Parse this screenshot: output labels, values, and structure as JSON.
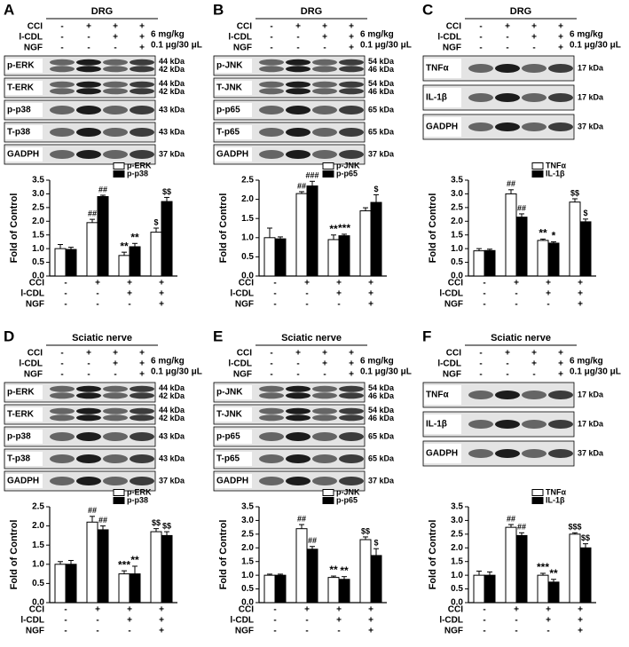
{
  "blots": [
    {
      "letter": "A",
      "tissue": "DRG",
      "conditions": [
        {
          "name": "CCI",
          "signs": [
            "-",
            "+",
            "+",
            "+"
          ]
        },
        {
          "name": "l-CDL",
          "signs": [
            "-",
            "-",
            "+",
            "+"
          ],
          "dose": "6 mg/kg"
        },
        {
          "name": "NGF",
          "signs": [
            "-",
            "-",
            "-",
            "+"
          ],
          "dose": "0.1 μg/30 μL"
        }
      ],
      "bands": [
        {
          "name": "p-ERK",
          "kda": [
            "44 kDa",
            "42 kDa"
          ]
        },
        {
          "name": "T-ERK",
          "kda": [
            "44 kDa",
            "42 kDa"
          ]
        },
        {
          "name": "p-p38",
          "kda": [
            "43 kDa"
          ]
        },
        {
          "name": "T-p38",
          "kda": [
            "43 kDa"
          ]
        },
        {
          "name": "GADPH",
          "kda": [
            "37 kDa"
          ]
        }
      ]
    },
    {
      "letter": "B",
      "tissue": "DRG",
      "conditions": [
        {
          "name": "CCI",
          "signs": [
            "-",
            "+",
            "+",
            "+"
          ]
        },
        {
          "name": "l-CDL",
          "signs": [
            "-",
            "-",
            "+",
            "+"
          ],
          "dose": "6 mg/kg"
        },
        {
          "name": "NGF",
          "signs": [
            "-",
            "-",
            "-",
            "+"
          ],
          "dose": "0.1 μg/30 μL"
        }
      ],
      "bands": [
        {
          "name": "p-JNK",
          "kda": [
            "54 kDa",
            "46 kDa"
          ]
        },
        {
          "name": "T-JNK",
          "kda": [
            "54 kDa",
            "46 kDa"
          ]
        },
        {
          "name": "p-p65",
          "kda": [
            "65 kDa"
          ]
        },
        {
          "name": "T-p65",
          "kda": [
            "65 kDa"
          ]
        },
        {
          "name": "GADPH",
          "kda": [
            "37 kDa"
          ]
        }
      ]
    },
    {
      "letter": "C",
      "tissue": "DRG",
      "conditions": [
        {
          "name": "CCI",
          "signs": [
            "-",
            "+",
            "+",
            "+"
          ]
        },
        {
          "name": "l-CDL",
          "signs": [
            "-",
            "-",
            "+",
            "+"
          ],
          "dose": "6 mg/kg"
        },
        {
          "name": "NGF",
          "signs": [
            "-",
            "-",
            "-",
            "+"
          ],
          "dose": "0.1 μg/30 μL"
        }
      ],
      "bands": [
        {
          "name": "TNFα",
          "kda": [
            "17 kDa"
          ]
        },
        {
          "name": "IL-1β",
          "kda": [
            "17 kDa"
          ]
        },
        {
          "name": "GADPH",
          "kda": [
            "37 kDa"
          ]
        }
      ]
    },
    {
      "letter": "D",
      "tissue": "Sciatic nerve",
      "conditions": [
        {
          "name": "CCI",
          "signs": [
            "-",
            "+",
            "+",
            "+"
          ]
        },
        {
          "name": "l-CDL",
          "signs": [
            "-",
            "-",
            "+",
            "+"
          ],
          "dose": "6 mg/kg"
        },
        {
          "name": "NGF",
          "signs": [
            "-",
            "-",
            "-",
            "+"
          ],
          "dose": "0.1 μg/30 μL"
        }
      ],
      "bands": [
        {
          "name": "p-ERK",
          "kda": [
            "44 kDa",
            "42 kDa"
          ]
        },
        {
          "name": "T-ERK",
          "kda": [
            "44 kDa",
            "42 kDa"
          ]
        },
        {
          "name": "p-p38",
          "kda": [
            "43 kDa"
          ]
        },
        {
          "name": "T-p38",
          "kda": [
            "43 kDa"
          ]
        },
        {
          "name": "GADPH",
          "kda": [
            "37 kDa"
          ]
        }
      ]
    },
    {
      "letter": "E",
      "tissue": "Sciatic nerve",
      "conditions": [
        {
          "name": "CCI",
          "signs": [
            "-",
            "+",
            "+",
            "+"
          ]
        },
        {
          "name": "l-CDL",
          "signs": [
            "-",
            "-",
            "+",
            "+"
          ],
          "dose": "6 mg/kg"
        },
        {
          "name": "NGF",
          "signs": [
            "-",
            "-",
            "-",
            "+"
          ],
          "dose": "0.1 μg/30 μL"
        }
      ],
      "bands": [
        {
          "name": "p-JNK",
          "kda": [
            "54 kDa",
            "46 kDa"
          ]
        },
        {
          "name": "T-JNK",
          "kda": [
            "54 kDa",
            "46 kDa"
          ]
        },
        {
          "name": "p-p65",
          "kda": [
            "65 kDa"
          ]
        },
        {
          "name": "T-p65",
          "kda": [
            "65 kDa"
          ]
        },
        {
          "name": "GADPH",
          "kda": [
            "37 kDa"
          ]
        }
      ]
    },
    {
      "letter": "F",
      "tissue": "Sciatic nerve",
      "conditions": [
        {
          "name": "CCI",
          "signs": [
            "-",
            "+",
            "+",
            "+"
          ]
        },
        {
          "name": "l-CDL",
          "signs": [
            "-",
            "-",
            "+",
            "+"
          ],
          "dose": "6 mg/kg"
        },
        {
          "name": "NGF",
          "signs": [
            "-",
            "-",
            "-",
            "+"
          ],
          "dose": "0.1 μg/30 μL"
        }
      ],
      "bands": [
        {
          "name": "TNFα",
          "kda": [
            "17 kDa"
          ]
        },
        {
          "name": "IL-1β",
          "kda": [
            "17 kDa"
          ]
        },
        {
          "name": "GADPH",
          "kda": [
            "37 kDa"
          ]
        }
      ]
    }
  ],
  "chart_data": [
    {
      "type": "bar",
      "ylabel": "Fold of Control",
      "ylim": [
        0,
        3.5
      ],
      "yticks": [
        {
          "value": 0,
          "label": "0.0"
        },
        0.5,
        {
          "value": 1,
          "label": "1.0"
        },
        1.5,
        {
          "value": 2,
          "label": "2.0"
        },
        2.5,
        {
          "value": 3,
          "label": "3.0"
        },
        3.5
      ],
      "conditions": [
        {
          "name": "CCI",
          "signs": [
            "-",
            "+",
            "+",
            "+"
          ]
        },
        {
          "name": "l-CDL",
          "signs": [
            "-",
            "-",
            "+",
            "+"
          ]
        },
        {
          "name": "NGF",
          "signs": [
            "-",
            "-",
            "-",
            "+"
          ]
        }
      ],
      "series": [
        {
          "name": "p-ERK",
          "color": "#ffffff",
          "values": [
            1.0,
            1.95,
            0.75,
            1.6
          ],
          "errors": [
            0.15,
            0.12,
            0.12,
            0.15
          ],
          "annotations": [
            null,
            "##",
            "**",
            "$"
          ]
        },
        {
          "name": "p-p38",
          "color": "#000000",
          "values": [
            0.97,
            2.9,
            1.07,
            2.72
          ],
          "errors": [
            0.08,
            0.05,
            0.12,
            0.15
          ],
          "annotations": [
            null,
            "##",
            "**",
            "$$"
          ]
        }
      ]
    },
    {
      "type": "bar",
      "ylabel": "Fold of Control",
      "ylim": [
        0,
        2.5
      ],
      "yticks": [
        {
          "value": 0,
          "label": "0.0"
        },
        0.5,
        {
          "value": 1,
          "label": "1.0"
        },
        1.5,
        {
          "value": 2,
          "label": "2.0"
        },
        2.5
      ],
      "conditions": [
        {
          "name": "CCI",
          "signs": [
            "-",
            "+",
            "+",
            "+"
          ]
        },
        {
          "name": "l-CDL",
          "signs": [
            "-",
            "-",
            "+",
            "+"
          ]
        },
        {
          "name": "NGF",
          "signs": [
            "-",
            "-",
            "-",
            "+"
          ]
        }
      ],
      "series": [
        {
          "name": "p-JNK",
          "color": "#ffffff",
          "values": [
            1.0,
            2.15,
            0.95,
            1.7
          ],
          "errors": [
            0.25,
            0.05,
            0.12,
            0.08
          ],
          "annotations": [
            null,
            "##",
            "**",
            null
          ]
        },
        {
          "name": "p-p65",
          "color": "#000000",
          "values": [
            0.97,
            2.35,
            1.05,
            1.92
          ],
          "errors": [
            0.05,
            0.12,
            0.04,
            0.2
          ],
          "annotations": [
            null,
            "###",
            "***",
            "$"
          ]
        }
      ]
    },
    {
      "type": "bar",
      "ylabel": "Fold of Control",
      "ylim": [
        0,
        3.5
      ],
      "yticks": [
        {
          "value": 0,
          "label": "0.0"
        },
        0.5,
        {
          "value": 1,
          "label": "1.0"
        },
        1.5,
        {
          "value": 2,
          "label": "2.0"
        },
        2.5,
        {
          "value": 3,
          "label": "3.0"
        },
        3.5
      ],
      "conditions": [
        {
          "name": "CCI",
          "signs": [
            "-",
            "+",
            "+",
            "+"
          ]
        },
        {
          "name": "l-CDL",
          "signs": [
            "-",
            "-",
            "+",
            "+"
          ]
        },
        {
          "name": "NGF",
          "signs": [
            "-",
            "-",
            "-",
            "+"
          ]
        }
      ],
      "series": [
        {
          "name": "TNFα",
          "color": "#ffffff",
          "values": [
            0.92,
            3.0,
            1.3,
            2.7
          ],
          "errors": [
            0.08,
            0.15,
            0.05,
            0.12
          ],
          "annotations": [
            null,
            "##",
            "**",
            "$$"
          ]
        },
        {
          "name": "IL-1β",
          "color": "#000000",
          "values": [
            0.93,
            2.15,
            1.2,
            1.98
          ],
          "errors": [
            0.05,
            0.12,
            0.05,
            0.1
          ],
          "annotations": [
            null,
            "##",
            "*",
            "$"
          ]
        }
      ]
    },
    {
      "type": "bar",
      "ylabel": "Fold of Control",
      "ylim": [
        0,
        2.5
      ],
      "yticks": [
        {
          "value": 0,
          "label": "0.0"
        },
        0.5,
        {
          "value": 1,
          "label": "1.0"
        },
        1.5,
        {
          "value": 2,
          "label": "2.0"
        },
        2.5
      ],
      "conditions": [
        {
          "name": "CCI",
          "signs": [
            "-",
            "+",
            "+",
            "+"
          ]
        },
        {
          "name": "l-CDL",
          "signs": [
            "-",
            "-",
            "+",
            "+"
          ]
        },
        {
          "name": "NGF",
          "signs": [
            "-",
            "-",
            "-",
            "+"
          ]
        }
      ],
      "series": [
        {
          "name": "p-ERK",
          "color": "#ffffff",
          "values": [
            1.0,
            2.1,
            0.75,
            1.85
          ],
          "errors": [
            0.07,
            0.15,
            0.08,
            0.08
          ],
          "annotations": [
            null,
            "##",
            "***",
            "$$"
          ]
        },
        {
          "name": "p-p38",
          "color": "#000000",
          "values": [
            1.0,
            1.9,
            0.75,
            1.75
          ],
          "errors": [
            0.1,
            0.1,
            0.2,
            0.1
          ],
          "annotations": [
            null,
            "##",
            "**",
            "$$"
          ]
        }
      ]
    },
    {
      "type": "bar",
      "ylabel": "Fold of Control",
      "ylim": [
        0,
        3.5
      ],
      "yticks": [
        {
          "value": 0,
          "label": "0.0"
        },
        0.5,
        {
          "value": 1,
          "label": "1.0"
        },
        1.5,
        {
          "value": 2,
          "label": "2.0"
        },
        2.5,
        {
          "value": 3,
          "label": "3.0"
        },
        3.5
      ],
      "conditions": [
        {
          "name": "CCI",
          "signs": [
            "-",
            "+",
            "+",
            "+"
          ]
        },
        {
          "name": "l-CDL",
          "signs": [
            "-",
            "-",
            "+",
            "+"
          ]
        },
        {
          "name": "NGF",
          "signs": [
            "-",
            "-",
            "-",
            "+"
          ]
        }
      ],
      "series": [
        {
          "name": "p-JNK",
          "color": "#ffffff",
          "values": [
            1.0,
            2.7,
            0.92,
            2.3
          ],
          "errors": [
            0.04,
            0.15,
            0.05,
            0.1
          ],
          "annotations": [
            null,
            "##",
            "**",
            "$$"
          ]
        },
        {
          "name": "p-p65",
          "color": "#000000",
          "values": [
            1.0,
            1.95,
            0.85,
            1.72
          ],
          "errors": [
            0.04,
            0.1,
            0.1,
            0.25
          ],
          "annotations": [
            null,
            "##",
            "**",
            "$"
          ]
        }
      ]
    },
    {
      "type": "bar",
      "ylabel": "Fold of Control",
      "ylim": [
        0,
        3.5
      ],
      "yticks": [
        {
          "value": 0,
          "label": "0.0"
        },
        0.5,
        {
          "value": 1,
          "label": "1.0"
        },
        1.5,
        {
          "value": 2,
          "label": "2.0"
        },
        2.5,
        {
          "value": 3,
          "label": "3.0"
        },
        3.5
      ],
      "conditions": [
        {
          "name": "CCI",
          "signs": [
            "-",
            "+",
            "+",
            "+"
          ]
        },
        {
          "name": "l-CDL",
          "signs": [
            "-",
            "-",
            "+",
            "+"
          ]
        },
        {
          "name": "NGF",
          "signs": [
            "-",
            "-",
            "-",
            "+"
          ]
        }
      ],
      "series": [
        {
          "name": "TNFα",
          "color": "#ffffff",
          "values": [
            1.0,
            2.75,
            1.0,
            2.5
          ],
          "errors": [
            0.15,
            0.1,
            0.07,
            0.05
          ],
          "annotations": [
            null,
            "##",
            "***",
            "$$$"
          ]
        },
        {
          "name": "IL-1β",
          "color": "#000000",
          "values": [
            1.0,
            2.45,
            0.75,
            2.0
          ],
          "errors": [
            0.12,
            0.1,
            0.1,
            0.15
          ],
          "annotations": [
            null,
            "##",
            "**",
            "$$"
          ]
        }
      ]
    }
  ]
}
